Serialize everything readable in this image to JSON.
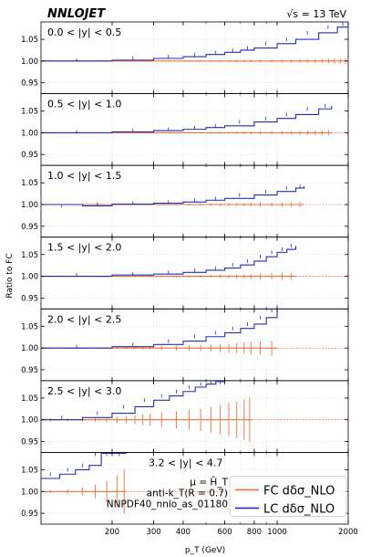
{
  "header": {
    "brand": "NNLOJET",
    "energy": "√s = 13 TeV"
  },
  "colors": {
    "fc": "#f0703c",
    "lc": "#2a2ab8",
    "reference": "#e86a30",
    "grid": "#d0d0d0"
  },
  "chart_data": {
    "type": "line",
    "ylabel": "Ratio to FC",
    "xlabel": "p_T (GeV)",
    "xscale": "log",
    "xlim": [
      100,
      2000
    ],
    "ylim": [
      0.925,
      1.09
    ],
    "x_tick_labels": [
      "200",
      "300",
      "400",
      "600",
      "800",
      "1000",
      "2000"
    ],
    "x_ticks": [
      200,
      300,
      400,
      600,
      800,
      1000,
      2000
    ],
    "y_ticks": [
      0.95,
      1.0,
      1.05
    ],
    "y_tick_labels": [
      "0.95",
      "1.00",
      "1.05"
    ],
    "grid": true,
    "legend_position": "lower-right",
    "legend": [
      {
        "key": "fc",
        "label": "FC dδσ_NLO"
      },
      {
        "key": "lc",
        "label": "LC dδσ_NLO"
      }
    ],
    "annotations": [
      "μ = Ĥ_T",
      "anti-k_T(R = 0.7)",
      "NNPDF40_nnlo_as_01180"
    ],
    "panels": [
      {
        "label": "0.0 < |y| < 0.5",
        "fc_xmax": 2000,
        "fc_err": 0.0015,
        "lc_points": [
          [
            100,
            1.0
          ],
          [
            200,
            1.002
          ],
          [
            300,
            1.006
          ],
          [
            400,
            1.01
          ],
          [
            500,
            1.015
          ],
          [
            600,
            1.02
          ],
          [
            700,
            1.025
          ],
          [
            800,
            1.03
          ],
          [
            1000,
            1.04
          ],
          [
            1200,
            1.05
          ],
          [
            1500,
            1.065
          ],
          [
            1800,
            1.078
          ],
          [
            2000,
            1.085
          ]
        ]
      },
      {
        "label": "0.5 < |y| < 1.0",
        "fc_xmax": 1700,
        "fc_err": 0.0015,
        "lc_points": [
          [
            100,
            1.0
          ],
          [
            200,
            1.002
          ],
          [
            300,
            1.005
          ],
          [
            400,
            1.008
          ],
          [
            500,
            1.012
          ],
          [
            600,
            1.016
          ],
          [
            800,
            1.025
          ],
          [
            1000,
            1.033
          ],
          [
            1200,
            1.042
          ],
          [
            1500,
            1.055
          ],
          [
            1700,
            1.062
          ]
        ]
      },
      {
        "label": "1.0 < |y| < 1.5",
        "fc_xmax": 1300,
        "fc_err": 0.0015,
        "lc_points": [
          [
            100,
            1.0
          ],
          [
            150,
            0.997
          ],
          [
            200,
            1.001
          ],
          [
            300,
            1.003
          ],
          [
            400,
            1.006
          ],
          [
            500,
            1.01
          ],
          [
            600,
            1.014
          ],
          [
            800,
            1.022
          ],
          [
            1000,
            1.03
          ],
          [
            1200,
            1.038
          ],
          [
            1300,
            1.042
          ]
        ]
      },
      {
        "label": "1.5 < |y| < 2.0",
        "fc_xmax": 1200,
        "fc_err": 0.002,
        "lc_points": [
          [
            100,
            1.0
          ],
          [
            200,
            1.003
          ],
          [
            300,
            1.005
          ],
          [
            400,
            1.009
          ],
          [
            500,
            1.014
          ],
          [
            600,
            1.019
          ],
          [
            700,
            1.026
          ],
          [
            800,
            1.035
          ],
          [
            900,
            1.045
          ],
          [
            1000,
            1.055
          ],
          [
            1100,
            1.062
          ],
          [
            1200,
            1.07
          ]
        ]
      },
      {
        "label": "2.0 < |y| < 2.5",
        "fc_xmax": 1000,
        "fc_err": 0.004,
        "lc_points": [
          [
            100,
            1.0
          ],
          [
            200,
            1.003
          ],
          [
            300,
            1.008
          ],
          [
            400,
            1.016
          ],
          [
            500,
            1.026
          ],
          [
            600,
            1.035
          ],
          [
            700,
            1.045
          ],
          [
            800,
            1.055
          ],
          [
            900,
            1.07
          ],
          [
            1000,
            1.09
          ]
        ]
      },
      {
        "label": "2.5 < |y| < 3.0",
        "fc_xmax": 780,
        "fc_err": 0.012,
        "lc_points": [
          [
            100,
            1.0
          ],
          [
            150,
            1.005
          ],
          [
            200,
            1.015
          ],
          [
            250,
            1.03
          ],
          [
            300,
            1.045
          ],
          [
            350,
            1.055
          ],
          [
            400,
            1.065
          ],
          [
            450,
            1.075
          ],
          [
            500,
            1.082
          ],
          [
            550,
            1.088
          ],
          [
            600,
            1.09
          ]
        ]
      },
      {
        "label": "3.2 < |y| < 4.7",
        "fc_xmax": 230,
        "fc_err": 0.012,
        "lc_points": [
          [
            100,
            1.03
          ],
          [
            120,
            1.04
          ],
          [
            140,
            1.05
          ],
          [
            160,
            1.06
          ],
          [
            180,
            1.09
          ],
          [
            200,
            1.09
          ],
          [
            230,
            1.09
          ]
        ]
      }
    ]
  }
}
